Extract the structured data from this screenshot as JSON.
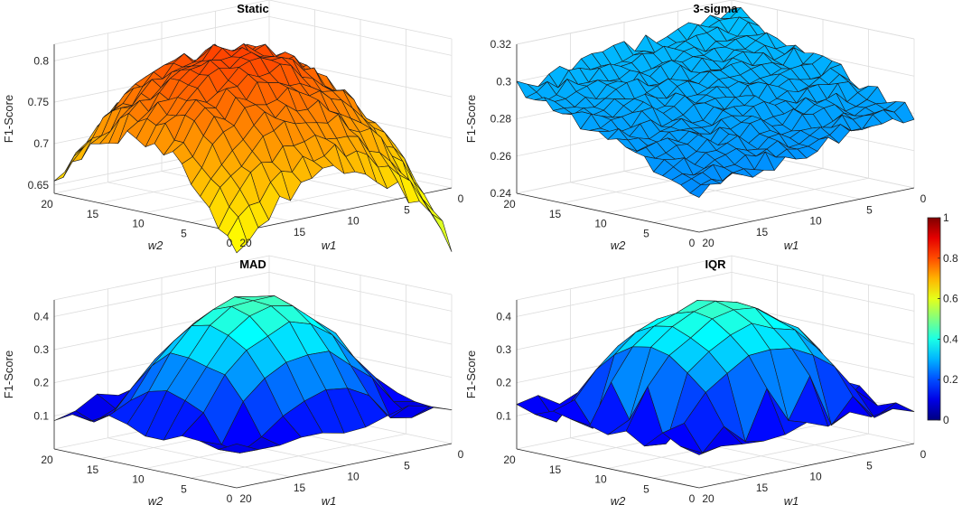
{
  "colorbar": {
    "ticks": [
      "1",
      "0.8",
      "0.6",
      "0.4",
      "0.2",
      "0"
    ],
    "colormap": "jet"
  },
  "chart_data": [
    {
      "type": "surface",
      "title": "Static",
      "xlabel": "w1",
      "ylabel": "w2",
      "zlabel": "F1-Score",
      "xlim": [
        0,
        20
      ],
      "ylim": [
        0,
        20
      ],
      "zlim": [
        0.64,
        0.82
      ],
      "zticks": [
        "0.65",
        "0.7",
        "0.75",
        "0.8"
      ],
      "zvals": [
        0.65,
        0.7,
        0.75,
        0.8
      ],
      "xticks": [
        "0",
        "5",
        "10",
        "15",
        "20"
      ],
      "yticks": [
        "0",
        "5",
        "10",
        "15",
        "20"
      ],
      "grid_n": 20,
      "shape": "dome_static",
      "z_min": 0.645,
      "z_max": 0.81
    },
    {
      "type": "surface",
      "title": "3-sigma",
      "xlabel": "w1",
      "ylabel": "w2",
      "zlabel": "F1-Score",
      "xlim": [
        0,
        20
      ],
      "ylim": [
        0,
        20
      ],
      "zlim": [
        0.24,
        0.32
      ],
      "zticks": [
        "0.24",
        "0.26",
        "0.28",
        "0.3",
        "0.32"
      ],
      "zvals": [
        0.24,
        0.26,
        0.28,
        0.3,
        0.32
      ],
      "xticks": [
        "0",
        "5",
        "10",
        "15",
        "20"
      ],
      "yticks": [
        "0",
        "5",
        "10",
        "15",
        "20"
      ],
      "grid_n": 20,
      "shape": "slope",
      "z_min": 0.255,
      "z_max": 0.315
    },
    {
      "type": "surface",
      "title": "MAD",
      "xlabel": "w1",
      "ylabel": "w2",
      "zlabel": "F1-Score",
      "xlim": [
        0,
        20
      ],
      "ylim": [
        0,
        20
      ],
      "zlim": [
        0,
        0.45
      ],
      "zticks": [
        "0.1",
        "0.2",
        "0.3",
        "0.4"
      ],
      "zvals": [
        0.1,
        0.2,
        0.3,
        0.4
      ],
      "xticks": [
        "0",
        "5",
        "10",
        "15",
        "20"
      ],
      "yticks": [
        "0",
        "5",
        "10",
        "15",
        "20"
      ],
      "grid_n": 10,
      "shape": "dome_mad",
      "z_min": 0.08,
      "z_max": 0.44
    },
    {
      "type": "surface",
      "title": "IQR",
      "xlabel": "w1",
      "ylabel": "w2",
      "zlabel": "F1-Score",
      "xlim": [
        0,
        20
      ],
      "ylim": [
        0,
        20
      ],
      "zlim": [
        0,
        0.45
      ],
      "zticks": [
        "0.1",
        "0.2",
        "0.3",
        "0.4"
      ],
      "zvals": [
        0.1,
        0.2,
        0.3,
        0.4
      ],
      "xticks": [
        "0",
        "5",
        "10",
        "15",
        "20"
      ],
      "yticks": [
        "0",
        "5",
        "10",
        "15",
        "20"
      ],
      "grid_n": 10,
      "shape": "dome_iqr",
      "z_min": 0.08,
      "z_max": 0.44
    }
  ]
}
